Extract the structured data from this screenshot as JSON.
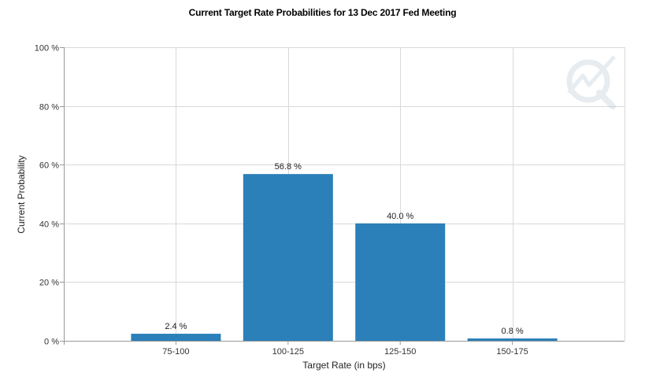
{
  "chart_data": {
    "type": "bar",
    "title": "Current Target Rate Probabilities for 13 Dec 2017 Fed Meeting",
    "xlabel": "Target Rate (in bps)",
    "ylabel": "Current Probability",
    "categories": [
      "75-100",
      "100-125",
      "125-150",
      "150-175"
    ],
    "values": [
      2.4,
      56.8,
      40.0,
      0.8
    ],
    "data_labels": [
      "2.4 %",
      "56.8 %",
      "40.0 %",
      "0.8 %"
    ],
    "y_ticks": [
      "0 %",
      "20 %",
      "40 %",
      "60 %",
      "80 %",
      "100 %"
    ],
    "ylim": [
      0,
      100
    ],
    "grid": true,
    "bar_color": "#2b80b9",
    "grid_color": "#d9d9d9"
  }
}
